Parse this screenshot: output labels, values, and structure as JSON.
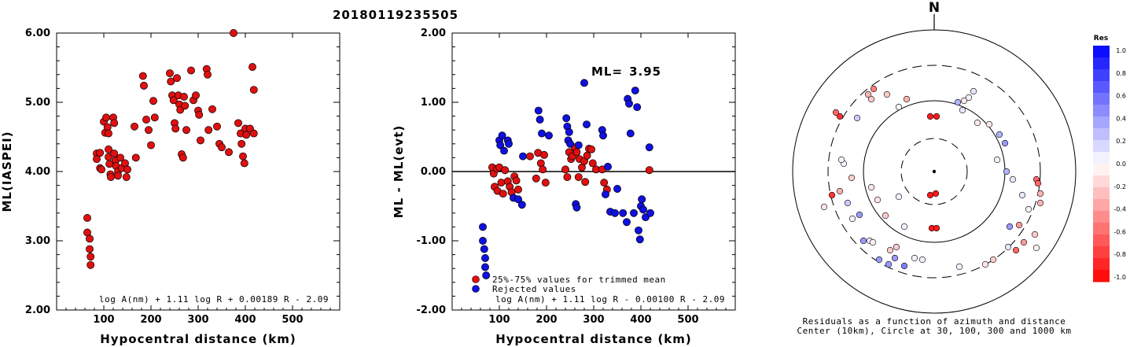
{
  "title": "20180119235505",
  "chart_data": [
    {
      "type": "scatter",
      "ylabel": "ML(IASPEI)",
      "xlabel": "Hypocentral distance (km)",
      "xlim": [
        0,
        600
      ],
      "ylim": [
        2.0,
        6.0
      ],
      "x_ticks": [
        "100",
        "200",
        "300",
        "400",
        "500"
      ],
      "y_ticks": [
        "2.00",
        "3.00",
        "4.00",
        "5.00",
        "6.00"
      ],
      "equation": "log A(nm) + 1.11 log R + 0.00189 R - 2.09",
      "point_color": "#e01010",
      "points": [
        [
          65,
          3.33
        ],
        [
          65,
          3.12
        ],
        [
          70,
          3.03
        ],
        [
          70,
          2.88
        ],
        [
          72,
          2.77
        ],
        [
          72,
          2.65
        ],
        [
          85,
          4.26
        ],
        [
          85,
          4.18
        ],
        [
          92,
          4.27
        ],
        [
          92,
          4.05
        ],
        [
          95,
          4.03
        ],
        [
          100,
          4.72
        ],
        [
          103,
          4.56
        ],
        [
          105,
          4.78
        ],
        [
          108,
          4.64
        ],
        [
          110,
          4.55
        ],
        [
          110,
          4.32
        ],
        [
          110,
          4.21
        ],
        [
          112,
          4.11
        ],
        [
          114,
          3.96
        ],
        [
          115,
          3.92
        ],
        [
          120,
          4.78
        ],
        [
          122,
          4.7
        ],
        [
          122,
          4.26
        ],
        [
          125,
          4.16
        ],
        [
          126,
          4.08
        ],
        [
          130,
          4.0
        ],
        [
          130,
          3.94
        ],
        [
          135,
          4.2
        ],
        [
          138,
          4.05
        ],
        [
          145,
          4.12
        ],
        [
          148,
          3.92
        ],
        [
          150,
          4.03
        ],
        [
          165,
          4.65
        ],
        [
          168,
          4.2
        ],
        [
          183,
          5.38
        ],
        [
          185,
          5.24
        ],
        [
          190,
          4.75
        ],
        [
          195,
          4.6
        ],
        [
          200,
          4.38
        ],
        [
          205,
          5.02
        ],
        [
          208,
          4.78
        ],
        [
          240,
          5.42
        ],
        [
          242,
          5.3
        ],
        [
          245,
          5.1
        ],
        [
          248,
          5.03
        ],
        [
          250,
          4.7
        ],
        [
          252,
          4.62
        ],
        [
          255,
          5.35
        ],
        [
          258,
          5.1
        ],
        [
          260,
          4.97
        ],
        [
          262,
          4.89
        ],
        [
          265,
          4.25
        ],
        [
          268,
          4.2
        ],
        [
          270,
          5.08
        ],
        [
          272,
          4.95
        ],
        [
          275,
          4.6
        ],
        [
          285,
          5.46
        ],
        [
          290,
          5.03
        ],
        [
          295,
          5.1
        ],
        [
          300,
          4.88
        ],
        [
          302,
          4.82
        ],
        [
          305,
          4.45
        ],
        [
          318,
          5.48
        ],
        [
          320,
          5.4
        ],
        [
          322,
          4.6
        ],
        [
          330,
          4.9
        ],
        [
          340,
          4.65
        ],
        [
          345,
          4.4
        ],
        [
          350,
          4.35
        ],
        [
          365,
          4.28
        ],
        [
          375,
          6.05
        ],
        [
          385,
          4.7
        ],
        [
          390,
          4.55
        ],
        [
          392,
          4.4
        ],
        [
          395,
          4.22
        ],
        [
          398,
          4.12
        ],
        [
          400,
          4.62
        ],
        [
          402,
          4.53
        ],
        [
          410,
          4.62
        ],
        [
          415,
          5.51
        ],
        [
          418,
          5.18
        ],
        [
          418,
          4.55
        ]
      ]
    },
    {
      "type": "scatter",
      "ylabel": "ML - ML(evt)",
      "xlabel": "Hypocentral distance (km)",
      "xlim": [
        0,
        600
      ],
      "ylim": [
        -2.0,
        2.0
      ],
      "x_ticks": [
        "100",
        "200",
        "300",
        "400",
        "500"
      ],
      "y_ticks": [
        "-2.00",
        "-1.00",
        "0.00",
        "1.00",
        "2.00"
      ],
      "equation": "log A(nm) + 1.11 log R - 0.00100 R - 2.09",
      "ml_label": "ML=",
      "ml_value": "3.95",
      "legend": [
        "25%-75% values for trimmed mean",
        "Rejected values"
      ],
      "colors": {
        "used": "#e01010",
        "rejected": "#1010e0"
      },
      "used_points": [
        [
          85,
          0.06
        ],
        [
          88,
          -0.03
        ],
        [
          90,
          -0.22
        ],
        [
          95,
          0.04
        ],
        [
          96,
          -0.28
        ],
        [
          100,
          0.06
        ],
        [
          104,
          -0.16
        ],
        [
          108,
          -0.32
        ],
        [
          112,
          0.02
        ],
        [
          118,
          -0.14
        ],
        [
          122,
          -0.22
        ],
        [
          126,
          -0.3
        ],
        [
          132,
          -0.07
        ],
        [
          136,
          -0.13
        ],
        [
          140,
          -0.26
        ],
        [
          165,
          0.22
        ],
        [
          178,
          -0.1
        ],
        [
          182,
          0.27
        ],
        [
          188,
          0.12
        ],
        [
          192,
          0.03
        ],
        [
          195,
          0.24
        ],
        [
          198,
          -0.16
        ],
        [
          240,
          0.03
        ],
        [
          244,
          -0.08
        ],
        [
          248,
          0.28
        ],
        [
          252,
          0.18
        ],
        [
          255,
          0.22
        ],
        [
          260,
          0.35
        ],
        [
          264,
          0.28
        ],
        [
          268,
          -0.08
        ],
        [
          270,
          0.18
        ],
        [
          275,
          0.06
        ],
        [
          280,
          0.15
        ],
        [
          282,
          -0.15
        ],
        [
          286,
          0.23
        ],
        [
          290,
          0.33
        ],
        [
          295,
          0.32
        ],
        [
          298,
          0.12
        ],
        [
          305,
          0.03
        ],
        [
          318,
          0.03
        ],
        [
          322,
          -0.16
        ],
        [
          328,
          -0.26
        ],
        [
          418,
          0.02
        ]
      ],
      "rejected_points": [
        [
          65,
          -0.8
        ],
        [
          65,
          -1.0
        ],
        [
          68,
          -1.12
        ],
        [
          70,
          -1.25
        ],
        [
          70,
          -1.38
        ],
        [
          72,
          -1.5
        ],
        [
          100,
          0.45
        ],
        [
          102,
          0.38
        ],
        [
          106,
          0.52
        ],
        [
          110,
          0.3
        ],
        [
          118,
          0.45
        ],
        [
          120,
          0.4
        ],
        [
          130,
          -0.38
        ],
        [
          140,
          -0.4
        ],
        [
          148,
          -0.48
        ],
        [
          150,
          0.22
        ],
        [
          183,
          0.88
        ],
        [
          186,
          0.75
        ],
        [
          190,
          0.55
        ],
        [
          205,
          0.52
        ],
        [
          242,
          0.77
        ],
        [
          244,
          0.65
        ],
        [
          246,
          0.45
        ],
        [
          248,
          0.57
        ],
        [
          250,
          0.4
        ],
        [
          262,
          -0.47
        ],
        [
          264,
          -0.52
        ],
        [
          268,
          0.38
        ],
        [
          280,
          1.28
        ],
        [
          285,
          0.68
        ],
        [
          318,
          0.6
        ],
        [
          320,
          0.52
        ],
        [
          325,
          -0.33
        ],
        [
          330,
          0.07
        ],
        [
          335,
          -0.58
        ],
        [
          345,
          -0.6
        ],
        [
          350,
          -0.25
        ],
        [
          362,
          -0.6
        ],
        [
          370,
          -0.73
        ],
        [
          372,
          1.05
        ],
        [
          375,
          0.98
        ],
        [
          378,
          0.55
        ],
        [
          385,
          -0.6
        ],
        [
          388,
          1.17
        ],
        [
          392,
          0.93
        ],
        [
          395,
          -0.85
        ],
        [
          398,
          -0.98
        ],
        [
          400,
          -0.5
        ],
        [
          402,
          -0.4
        ],
        [
          405,
          -0.55
        ],
        [
          410,
          -0.66
        ],
        [
          418,
          0.35
        ],
        [
          420,
          -0.6
        ]
      ]
    },
    {
      "type": "polar-scatter",
      "north_label": "N",
      "colorbar_title": "Res",
      "colorbar_ticks": [
        "1.0",
        "0.8",
        "0.6",
        "0.4",
        "0.2",
        "0.0",
        "-0.2",
        "-0.4",
        "-0.6",
        "-0.8",
        "-1.0"
      ],
      "caption_line1": "Residuals as a function of azimuth and distance",
      "caption_line2": "Center (10km), Circle at 30, 100, 300 and 1000 km",
      "points": [
        [
          35,
          0.05
        ],
        [
          50,
          -0.1
        ],
        [
          75,
          -0.3
        ],
        [
          95,
          0.1
        ],
        [
          120,
          0.4
        ],
        [
          160,
          0.0
        ],
        [
          200,
          -0.2
        ],
        [
          240,
          0.1
        ],
        [
          270,
          -0.3
        ],
        [
          300,
          0.2
        ],
        [
          330,
          -0.5
        ],
        [
          10,
          0.3
        ],
        [
          60,
          0.6
        ],
        [
          140,
          -0.4
        ],
        [
          220,
          0.5
        ],
        [
          280,
          -0.1
        ],
        [
          320,
          0.0
        ],
        [
          350,
          0.2
        ]
      ],
      "stations": [
        [
          -3,
          -72,
          -0.9
        ],
        [
          3,
          -72,
          -0.9
        ],
        [
          -5,
          70,
          -0.9
        ],
        [
          3,
          70,
          -0.9
        ],
        [
          -120,
          70,
          -0.8
        ],
        [
          -125,
          75,
          -0.6
        ],
        [
          -80,
          92,
          -0.2
        ],
        [
          -84,
          98,
          -0.3
        ],
        [
          -77,
          105,
          -0.5
        ],
        [
          -60,
          98,
          -0.2
        ],
        [
          -45,
          82,
          0.05
        ],
        [
          -35,
          92,
          -0.3
        ],
        [
          30,
          88,
          0.3
        ],
        [
          38,
          90,
          -0.1
        ],
        [
          44,
          94,
          0.05
        ],
        [
          50,
          102,
          0.1
        ],
        [
          36,
          78,
          0.1
        ],
        [
          55,
          62,
          -0.1
        ],
        [
          70,
          60,
          -0.1
        ],
        [
          83,
          47,
          0.3
        ],
        [
          90,
          36,
          0.4
        ],
        [
          80,
          15,
          0.05
        ],
        [
          92,
          0,
          0.3
        ],
        [
          100,
          -10,
          0.1
        ],
        [
          112,
          -30,
          0.1
        ],
        [
          135,
          -40,
          -0.3
        ],
        [
          135,
          -28,
          -0.3
        ],
        [
          120,
          -48,
          0.05
        ],
        [
          114,
          -90,
          -0.4
        ],
        [
          104,
          -100,
          -0.6
        ],
        [
          94,
          -96,
          0.1
        ],
        [
          75,
          -112,
          -0.2
        ],
        [
          65,
          -118,
          -0.1
        ],
        [
          32,
          -121,
          0.05
        ],
        [
          -15,
          -112,
          0.05
        ],
        [
          -25,
          -110,
          0.05
        ],
        [
          -38,
          -120,
          0.5
        ],
        [
          -50,
          -110,
          0.4
        ],
        [
          -58,
          -118,
          0.4
        ],
        [
          -70,
          -112,
          0.4
        ],
        [
          -90,
          -88,
          0.4
        ],
        [
          -82,
          -88,
          0.05
        ],
        [
          -56,
          -100,
          -0.2
        ],
        [
          -48,
          -96,
          -0.2
        ],
        [
          -62,
          -56,
          -0.2
        ],
        [
          -72,
          -36,
          -0.1
        ],
        [
          -80,
          -20,
          -0.1
        ],
        [
          -110,
          -40,
          0.2
        ],
        [
          -120,
          -25,
          -0.3
        ],
        [
          -105,
          -8,
          -0.2
        ],
        [
          -115,
          10,
          0.05
        ],
        [
          -118,
          15,
          0.05
        ],
        [
          -130,
          -30,
          -0.8
        ],
        [
          -104,
          -60,
          0.05
        ],
        [
          -78,
          -90,
          -0.05
        ],
        [
          -45,
          -32,
          0.05
        ],
        [
          -38,
          -70,
          0.05
        ],
        [
          -5,
          -30,
          -0.9
        ],
        [
          2,
          -28,
          -0.9
        ],
        [
          -95,
          -55,
          0.4
        ],
        [
          96,
          -70,
          0.4
        ],
        [
          108,
          -68,
          -0.4
        ],
        [
          128,
          -80,
          -0.2
        ],
        [
          130,
          -97,
          -0.05
        ],
        [
          130,
          -10,
          -0.6
        ],
        [
          132,
          -15,
          -0.6
        ],
        [
          -140,
          -45,
          -0.1
        ],
        [
          -98,
          68,
          0.2
        ]
      ]
    }
  ]
}
